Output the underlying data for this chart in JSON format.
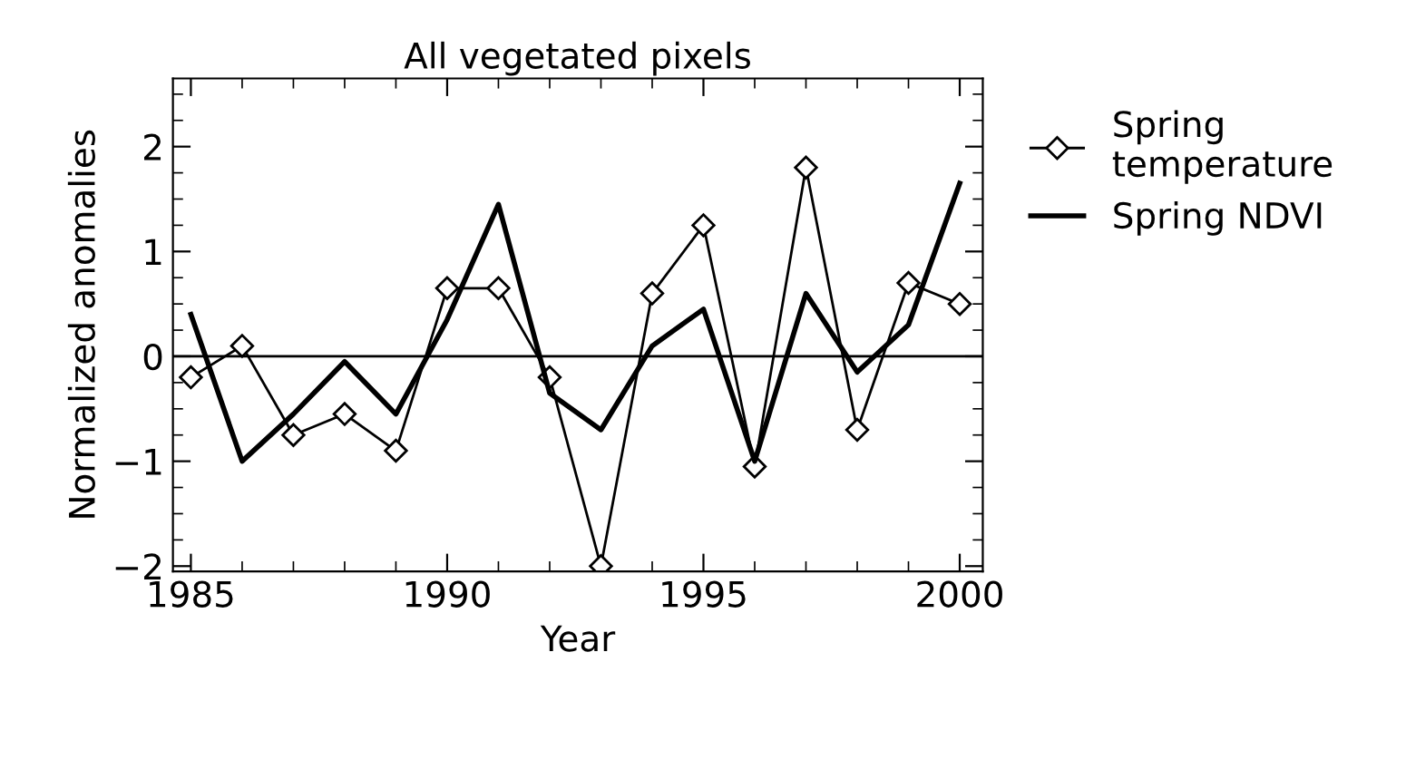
{
  "chart_data": {
    "type": "line",
    "title": "All vegetated pixels",
    "xlabel": "Year",
    "ylabel": "Normalized anomalies",
    "x": [
      1985,
      1986,
      1987,
      1988,
      1989,
      1990,
      1991,
      1992,
      1993,
      1994,
      1995,
      1996,
      1997,
      1998,
      1999,
      2000
    ],
    "series": [
      {
        "name": "Spring temperature",
        "color": "#000000",
        "marker": "diamond",
        "values": [
          -0.2,
          0.1,
          -0.75,
          -0.55,
          -0.9,
          0.65,
          0.65,
          -0.2,
          -2.0,
          0.6,
          1.25,
          -1.05,
          1.8,
          -0.7,
          0.7,
          0.5
        ]
      },
      {
        "name": "Spring NDVI",
        "color": "#000000",
        "marker": "none",
        "values": [
          0.4,
          -1.0,
          -0.55,
          -0.05,
          -0.55,
          0.35,
          1.45,
          -0.35,
          -0.7,
          0.1,
          0.45,
          -1.0,
          0.6,
          -0.15,
          0.3,
          1.65
        ]
      }
    ],
    "xlim": [
      1984.65,
      2000.45
    ],
    "xticks": [
      1985,
      1990,
      1995,
      2000
    ],
    "ylim": [
      -2.05,
      2.65
    ],
    "yticks": [
      -2,
      -1,
      0,
      1,
      2
    ],
    "ref_lines": [
      {
        "axis": "y",
        "value": 0
      }
    ],
    "grid": false,
    "legend": "right"
  }
}
